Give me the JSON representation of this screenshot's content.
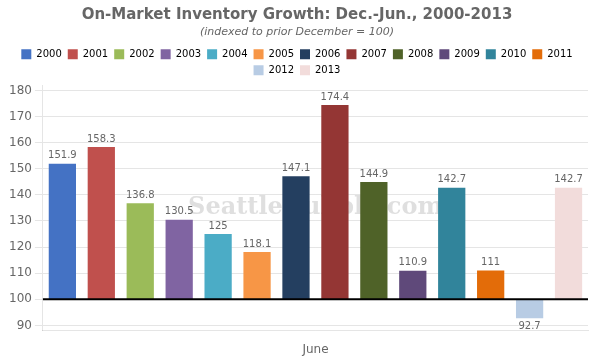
{
  "chart_data": {
    "type": "bar",
    "title": "On-Market Inventory Growth: Dec.-Jun., 2000-2013",
    "subtitle": "(indexed to prior December = 100)",
    "xlabel": "June",
    "categories": [
      "2000",
      "2001",
      "2002",
      "2003",
      "2004",
      "2005",
      "2006",
      "2007",
      "2008",
      "2009",
      "2010",
      "2011",
      "2012",
      "2013"
    ],
    "values": [
      151.9,
      158.3,
      136.8,
      130.5,
      125.0,
      118.1,
      147.1,
      174.4,
      144.9,
      110.9,
      142.7,
      111.0,
      92.7,
      142.7
    ],
    "colors": [
      "#4472C4",
      "#C0504D",
      "#9BBB59",
      "#8064A2",
      "#4BACC6",
      "#F79646",
      "#243F60",
      "#943634",
      "#4F6228",
      "#5F497A",
      "#31849B",
      "#E36C09",
      "#B8CCE4",
      "#F2DCDB"
    ],
    "baseline": 100,
    "ylim": [
      88,
      182
    ],
    "yticks": [
      90,
      100,
      110,
      120,
      130,
      140,
      150,
      160,
      170,
      180
    ],
    "grid": true,
    "data_labels": true,
    "tick_labels": "y",
    "legend": "top",
    "annotations": [
      "SeattleBubble.com"
    ]
  }
}
